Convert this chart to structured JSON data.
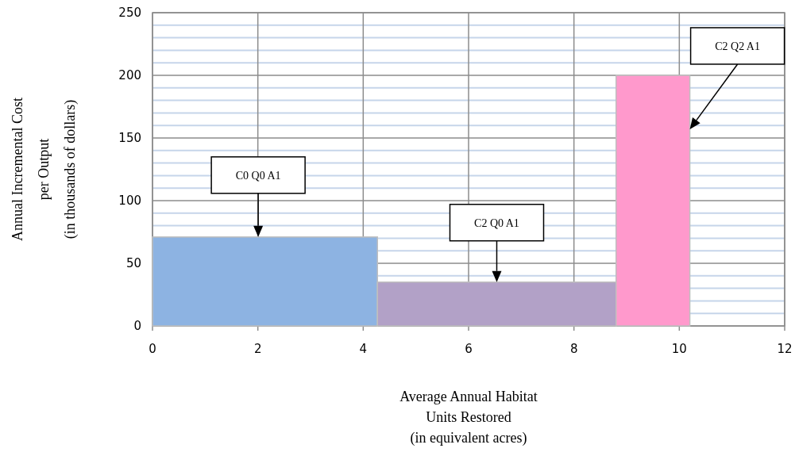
{
  "chart_data": {
    "type": "histogram",
    "xlabel": "Average Annual Habitat\nUnits Restored\n(in equivalent acres)",
    "ylabel": "Annual Incremental Cost\nper Output\n(in thousands of dollars)",
    "bins": [
      0,
      4.27,
      8.8,
      10.2
    ],
    "values": [
      71,
      35,
      200
    ],
    "colors": [
      "#8db3e2",
      "#b2a1c7",
      "#ff99cc"
    ],
    "xlim": [
      0,
      12
    ],
    "xticks": [
      0,
      2,
      4,
      6,
      8,
      10,
      12
    ],
    "ylim": [
      0,
      250
    ],
    "yticks": [
      0,
      50,
      100,
      150,
      200,
      250
    ],
    "grid": true,
    "annotations": [
      "C0 Q0 A1",
      "C2 Q0 A1",
      "C2 Q2 A1"
    ]
  }
}
